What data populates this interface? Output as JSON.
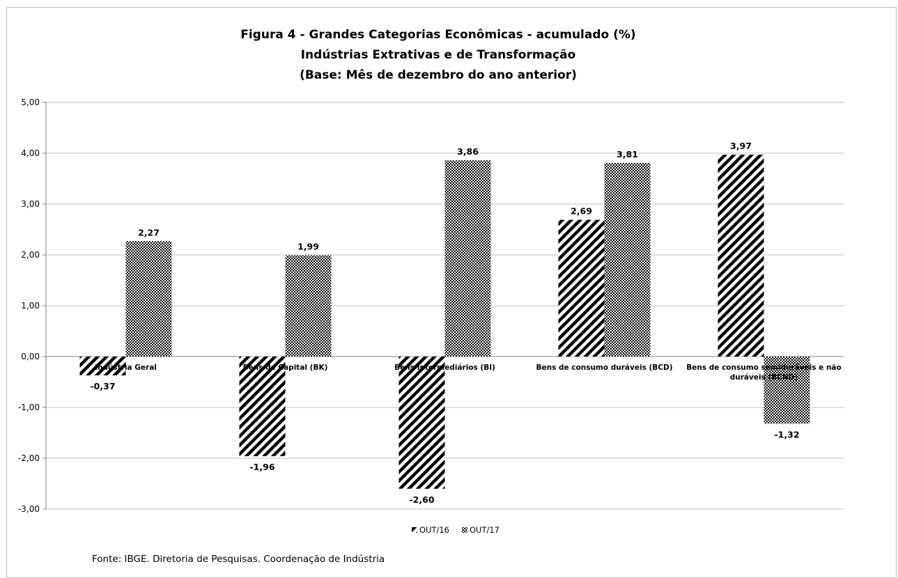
{
  "chart_data": {
    "type": "bar",
    "title": [
      "Figura 4 - Grandes Categorias Econômicas - acumulado (%)",
      "Indústrias Extrativas e de Transformação",
      "(Base: Mês de dezembro do ano anterior)"
    ],
    "categories": [
      [
        "Indústria Geral"
      ],
      [
        "Bens de Capital (BK)"
      ],
      [
        "Bens Intermediários (BI)"
      ],
      [
        "Bens de consumo duráveis (BCD)"
      ],
      [
        "Bens de consumo semiduráveis e não",
        "duráveis (BCND)"
      ]
    ],
    "series": [
      {
        "name": "OUT/16",
        "values": [
          -0.37,
          -1.96,
          -2.6,
          2.69,
          3.97
        ],
        "labels": [
          "-0,37",
          "-1,96",
          "-2,60",
          "2,69",
          "3,97"
        ],
        "pattern": "diagonal-stripes"
      },
      {
        "name": "OUT/17",
        "values": [
          2.27,
          1.99,
          3.86,
          3.81,
          -1.32
        ],
        "labels": [
          "2,27",
          "1,99",
          "3,86",
          "3,81",
          "-1,32"
        ],
        "pattern": "checker"
      }
    ],
    "ylim": [
      -3,
      5
    ],
    "yticks": [
      5,
      4,
      3,
      2,
      1,
      0,
      -1,
      -2,
      -3
    ],
    "ytick_labels": [
      "5,00",
      "4,00",
      "3,00",
      "2,00",
      "1,00",
      "0,00",
      "-1,00",
      "-2,00",
      "-3,00"
    ],
    "grid": true,
    "legend_position": "bottom",
    "colors": {
      "bar": "#000000",
      "grid": "#bfbfbf",
      "axis": "#808080"
    }
  },
  "source": "Fonte: IBGE. Diretoria de Pesquisas. Coordenação de Indústria"
}
